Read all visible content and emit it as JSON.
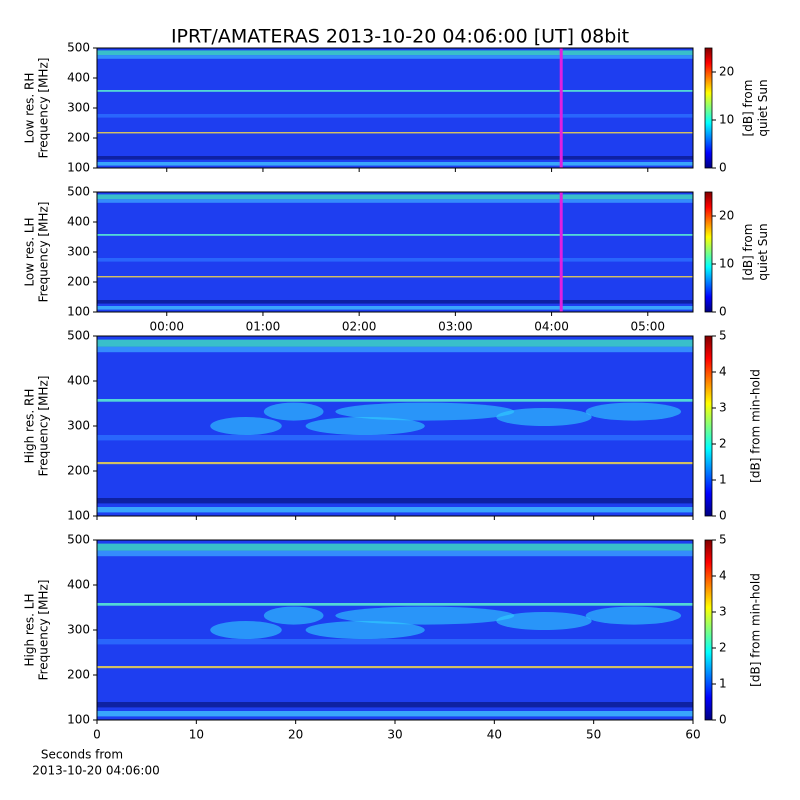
{
  "title": "IPRT/AMATERAS 2013-10-20 04:06:00 [UT]   08bit",
  "chart_data": [
    {
      "type": "heatmap",
      "ylabel": [
        "Low res. RH",
        "Frequency [MHz]"
      ],
      "ylim": [
        100,
        500
      ],
      "yticks": [
        100,
        200,
        300,
        400,
        500
      ],
      "xlim": [
        -0.725,
        5.47
      ],
      "xticks": [
        0,
        1,
        2,
        3,
        4,
        5
      ],
      "show_xtick_labels": false,
      "markers": [
        {
          "x": 4.1,
          "color": "#e020e0"
        }
      ],
      "colorbar": {
        "label": [
          "[dB] from",
          "quiet Sun"
        ],
        "lim": [
          0,
          25
        ],
        "ticks": [
          0,
          10,
          20
        ]
      }
    },
    {
      "type": "heatmap",
      "ylabel": [
        "Low res. LH",
        "Frequency [MHz]"
      ],
      "ylim": [
        100,
        500
      ],
      "yticks": [
        100,
        200,
        300,
        400,
        500
      ],
      "xlim": [
        -0.725,
        5.47
      ],
      "xticks": [
        {
          "value": 0,
          "label": "00:00"
        },
        {
          "value": 1,
          "label": "01:00"
        },
        {
          "value": 2,
          "label": "02:00"
        },
        {
          "value": 3,
          "label": "03:00"
        },
        {
          "value": 4,
          "label": "04:00"
        },
        {
          "value": 5,
          "label": "05:00"
        }
      ],
      "show_xtick_labels": true,
      "markers": [
        {
          "x": 4.1,
          "color": "#e020e0"
        }
      ],
      "colorbar": {
        "label": [
          "[dB] from",
          "quiet Sun"
        ],
        "lim": [
          0,
          25
        ],
        "ticks": [
          0,
          10,
          20
        ]
      }
    },
    {
      "type": "heatmap",
      "ylabel": [
        "High res. RH",
        "Frequency [MHz]"
      ],
      "ylim": [
        100,
        500
      ],
      "yticks": [
        100,
        200,
        300,
        400,
        500
      ],
      "xlim": [
        0,
        60
      ],
      "xticks": [
        0,
        10,
        20,
        30,
        40,
        50,
        60
      ],
      "show_xtick_labels": false,
      "colorbar": {
        "label": [
          "[dB] from min-hold"
        ],
        "lim": [
          0,
          5
        ],
        "ticks": [
          0,
          1,
          2,
          3,
          4,
          5
        ]
      }
    },
    {
      "type": "heatmap",
      "ylabel": [
        "High res. LH",
        "Frequency [MHz]"
      ],
      "ylim": [
        100,
        500
      ],
      "yticks": [
        100,
        200,
        300,
        400,
        500
      ],
      "xlim": [
        0,
        60
      ],
      "xticks": [
        0,
        10,
        20,
        30,
        40,
        50,
        60
      ],
      "show_xtick_labels": true,
      "xlabel": [
        "Seconds from",
        "2013-10-20 04:06:00"
      ],
      "colorbar": {
        "label": [
          "[dB] from min-hold"
        ],
        "lim": [
          0,
          5
        ],
        "ticks": [
          0,
          1,
          2,
          3,
          4,
          5
        ]
      }
    }
  ]
}
